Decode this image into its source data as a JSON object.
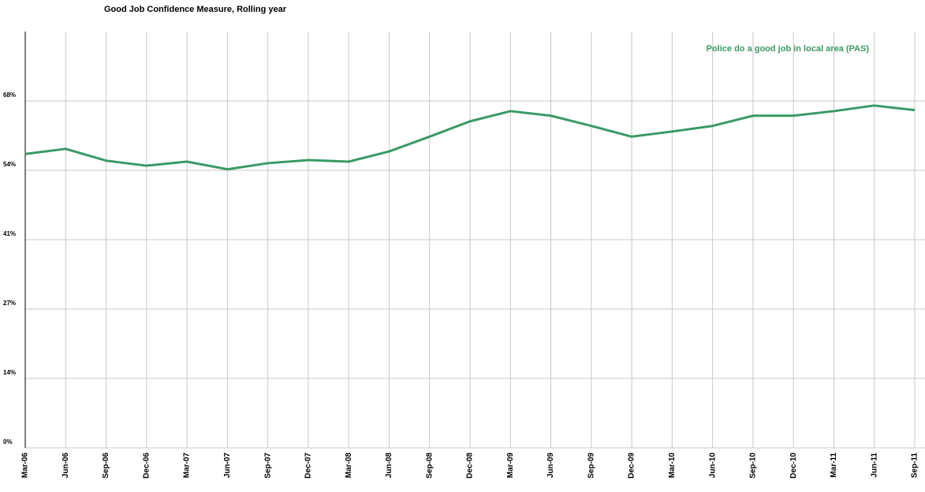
{
  "chart_data": {
    "type": "line",
    "title": "Good Job Confidence Measure, Rolling year",
    "categories": [
      "Mar-06",
      "Jun-06",
      "Sep-06",
      "Dec-06",
      "Mar-07",
      "Jun-07",
      "Sep-07",
      "Dec-07",
      "Mar-08",
      "Jun-08",
      "Sep-08",
      "Dec-08",
      "Mar-09",
      "Jun-09",
      "Sep-09",
      "Dec-09",
      "Mar-10",
      "Jun-10",
      "Sep-10",
      "Dec-10",
      "Mar-11",
      "Jun-11",
      "Sep-11"
    ],
    "series": [
      {
        "name": "Police do a good job in local area (PAS)",
        "color": "#3a9a64",
        "values": [
          57.6,
          58.6,
          56.3,
          55.3,
          56.1,
          54.6,
          55.8,
          56.4,
          56.1,
          58.1,
          61.0,
          64.0,
          66.0,
          65.1,
          63.1,
          61.0,
          62.0,
          63.1,
          65.1,
          65.1,
          66.0,
          67.1,
          66.2
        ]
      }
    ],
    "ylim": [
      0,
      81.6
    ],
    "yticks": [
      {
        "value": 0,
        "label": "0%"
      },
      {
        "value": 13.6,
        "label": "14%"
      },
      {
        "value": 27.2,
        "label": "27%"
      },
      {
        "value": 40.8,
        "label": "41%"
      },
      {
        "value": 54.4,
        "label": "54%"
      },
      {
        "value": 68,
        "label": "68%"
      }
    ],
    "grid": true,
    "legend": "top-right"
  }
}
